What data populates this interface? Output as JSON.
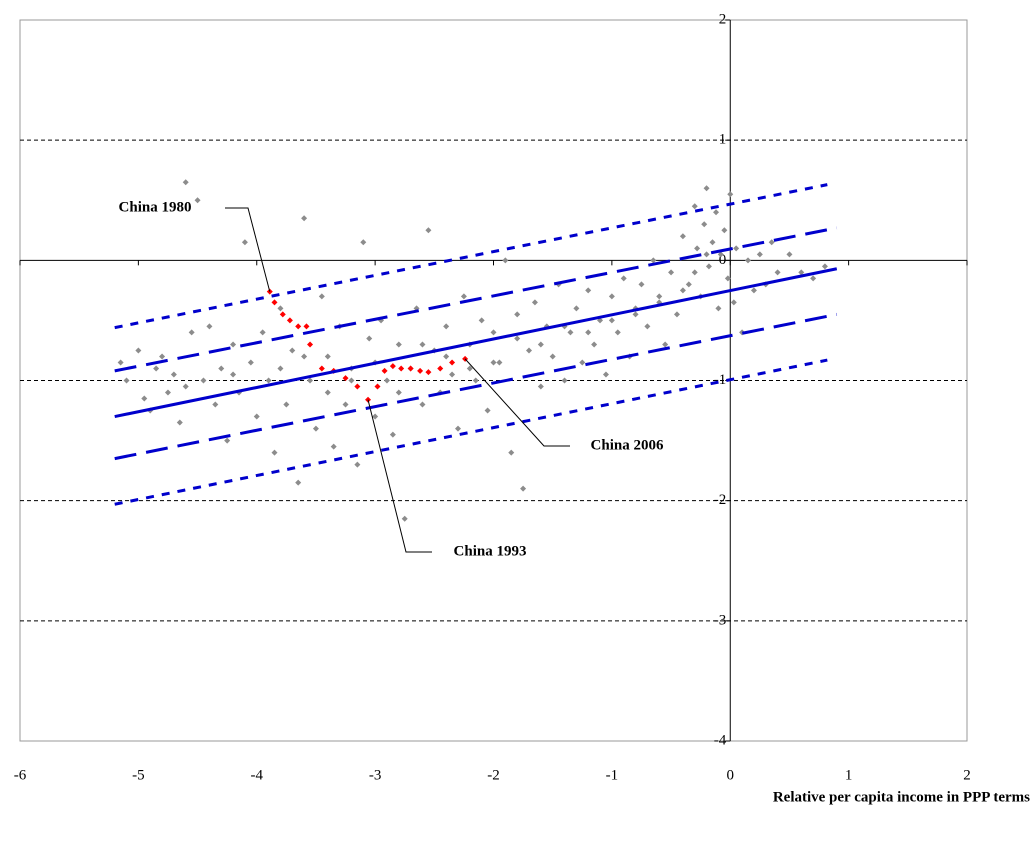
{
  "chart_data": {
    "type": "scatter",
    "x_label": "Relative per capita income in PPP terms",
    "xlim": [
      -6,
      2
    ],
    "ylim": [
      -4,
      2
    ],
    "xticks": [
      -6,
      -5,
      -4,
      -3,
      -2,
      -1,
      0,
      1,
      2
    ],
    "yticks": [
      -4,
      -3,
      -2,
      -1,
      0,
      1,
      2
    ],
    "grid": true,
    "annotations": [
      "China 1980",
      "China 1993",
      "China 2006"
    ],
    "series": [
      {
        "color": "#8c8c8c",
        "marker": "diamond",
        "x": [
          -5.15,
          -5.1,
          -5.0,
          -4.95,
          -4.9,
          -4.85,
          -4.8,
          -4.75,
          -4.7,
          -4.65,
          -4.6,
          -4.55,
          -4.5,
          -4.45,
          -4.4,
          -4.35,
          -4.3,
          -4.25,
          -4.2,
          -4.15,
          -4.1,
          -4.05,
          -4.0,
          -3.95,
          -3.9,
          -3.85,
          -3.8,
          -3.75,
          -3.7,
          -3.65,
          -3.6,
          -3.55,
          -3.5,
          -3.45,
          -3.4,
          -3.35,
          -3.3,
          -3.25,
          -3.2,
          -3.15,
          -3.1,
          -3.05,
          -3.0,
          -2.95,
          -2.9,
          -2.85,
          -2.8,
          -2.75,
          -2.7,
          -2.65,
          -2.6,
          -2.55,
          -2.5,
          -2.45,
          -2.4,
          -2.35,
          -2.3,
          -2.25,
          -2.2,
          -2.15,
          -2.1,
          -2.05,
          -2.0,
          -1.95,
          -1.9,
          -1.85,
          -1.8,
          -1.75,
          -1.7,
          -1.65,
          -1.6,
          -1.55,
          -1.5,
          -1.45,
          -1.4,
          -1.35,
          -1.3,
          -1.25,
          -1.2,
          -1.15,
          -1.1,
          -1.05,
          -1.0,
          -0.95,
          -0.9,
          -0.85,
          -0.8,
          -0.75,
          -0.7,
          -0.65,
          -0.6,
          -0.55,
          -0.5,
          -0.45,
          -0.4,
          -0.35,
          -0.3,
          -0.28,
          -0.25,
          -0.22,
          -0.2,
          -0.18,
          -0.15,
          -0.12,
          -0.1,
          -0.08,
          -0.05,
          -0.02,
          0.0,
          0.03,
          0.05,
          0.1,
          0.15,
          0.2,
          0.25,
          0.3,
          0.35,
          0.4,
          0.5,
          0.6,
          0.7,
          0.8,
          -4.6,
          -4.2,
          -3.8,
          -3.6,
          -3.4,
          -3.2,
          -3.0,
          -2.8,
          -2.6,
          -2.4,
          -2.2,
          -2.0,
          -1.8,
          -1.6,
          -1.4,
          -1.2,
          -1.0,
          -0.8,
          -0.6,
          -0.4,
          -0.3,
          -0.2
        ],
        "values": [
          -0.85,
          -1.0,
          -0.75,
          -1.15,
          -1.25,
          -0.9,
          -0.8,
          -1.1,
          -0.95,
          -1.35,
          0.65,
          -0.6,
          0.5,
          -1.0,
          -0.55,
          -1.2,
          -0.9,
          -1.5,
          -0.7,
          -1.1,
          0.15,
          -0.85,
          -1.3,
          -0.6,
          -1.0,
          -1.6,
          -0.4,
          -1.2,
          -0.75,
          -1.85,
          0.35,
          -1.0,
          -1.4,
          -0.3,
          -0.8,
          -1.55,
          -0.55,
          -1.2,
          -0.9,
          -1.7,
          0.15,
          -0.65,
          -1.3,
          -0.5,
          -1.0,
          -1.45,
          -0.7,
          -2.15,
          -0.9,
          -0.4,
          -1.2,
          0.25,
          -0.75,
          -1.1,
          -0.55,
          -0.95,
          -1.4,
          -0.3,
          -0.7,
          -1.0,
          -0.5,
          -1.25,
          -0.6,
          -0.85,
          0.0,
          -1.6,
          -0.45,
          -1.9,
          -0.75,
          -0.35,
          -1.05,
          -0.55,
          -0.8,
          -0.2,
          -1.0,
          -0.6,
          -0.4,
          -0.85,
          -0.25,
          -0.7,
          -0.5,
          -0.95,
          -0.3,
          -0.6,
          -0.15,
          -0.8,
          -0.4,
          -0.2,
          -0.55,
          0.0,
          -0.35,
          -0.7,
          -0.1,
          -0.45,
          0.2,
          -0.2,
          0.45,
          0.1,
          -0.3,
          0.3,
          0.6,
          -0.05,
          0.15,
          0.4,
          -0.4,
          0.05,
          0.25,
          -0.15,
          0.55,
          -0.35,
          0.1,
          -0.6,
          0.0,
          -0.25,
          0.05,
          -0.2,
          0.15,
          -0.1,
          0.05,
          -0.1,
          -0.15,
          -0.05,
          -1.05,
          -0.95,
          -0.9,
          -0.8,
          -1.1,
          -1.0,
          -0.85,
          -1.1,
          -0.7,
          -0.8,
          -0.9,
          -0.85,
          -0.65,
          -0.7,
          -0.55,
          -0.6,
          -0.5,
          -0.45,
          -0.3,
          -0.25,
          -0.1,
          0.05
        ]
      },
      {
        "color": "#ff0000",
        "marker": "diamond",
        "x": [
          -3.89,
          -3.85,
          -3.78,
          -3.72,
          -3.65,
          -3.58,
          -3.55,
          -3.45,
          -3.35,
          -3.25,
          -3.15,
          -3.06,
          -2.98,
          -2.92,
          -2.85,
          -2.78,
          -2.7,
          -2.62,
          -2.55,
          -2.45,
          -2.35,
          -2.24
        ],
        "values": [
          -0.26,
          -0.35,
          -0.45,
          -0.5,
          -0.55,
          -0.55,
          -0.7,
          -0.9,
          -0.92,
          -0.98,
          -1.05,
          -1.16,
          -1.05,
          -0.92,
          -0.88,
          -0.9,
          -0.9,
          -0.92,
          -0.93,
          -0.9,
          -0.85,
          -0.82
        ]
      },
      {
        "color": "#0000cc",
        "line": "solid",
        "x": [
          -5.2,
          0.9
        ],
        "values": [
          -1.3,
          -0.07
        ]
      },
      {
        "color": "#0000cc",
        "line": "dashed",
        "x": [
          -5.2,
          0.9
        ],
        "values": [
          -0.92,
          0.27
        ]
      },
      {
        "color": "#0000cc",
        "line": "dashed",
        "x": [
          -5.2,
          0.9
        ],
        "values": [
          -1.65,
          -0.45
        ]
      },
      {
        "color": "#0000cc",
        "line": "dotted",
        "x": [
          -5.2,
          0.82
        ],
        "values": [
          -0.56,
          0.63
        ]
      },
      {
        "color": "#0000cc",
        "line": "dotted",
        "x": [
          -5.2,
          0.82
        ],
        "values": [
          -2.03,
          -0.83
        ]
      }
    ]
  }
}
